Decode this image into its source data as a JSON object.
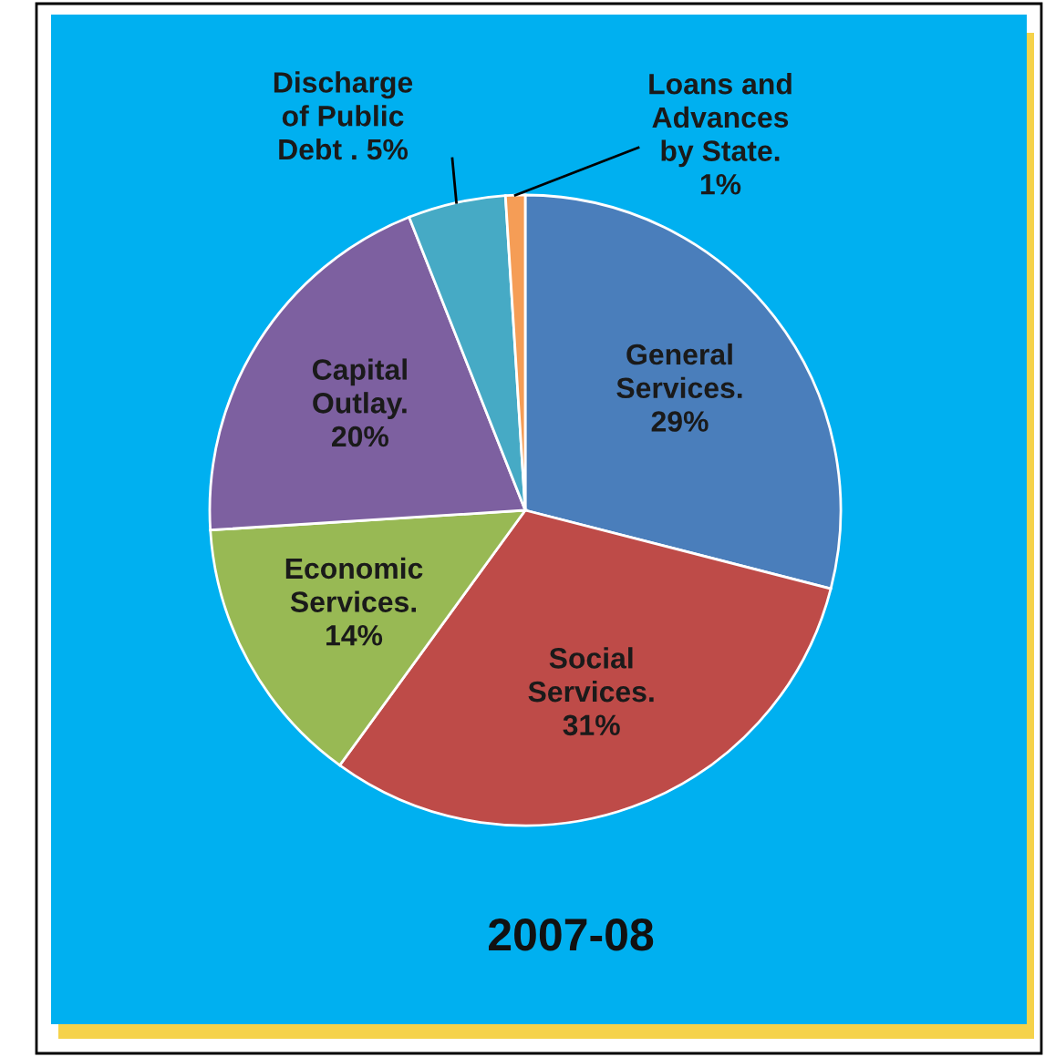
{
  "chart_data": {
    "type": "pie",
    "title": "2007-08",
    "categories": [
      "General\nServices.",
      "Social\nServices.",
      "Economic\nServices.",
      "Capital\nOutlay.",
      "Discharge\nof Public\nDebt .",
      "Loans and\nAdvances\nby State."
    ],
    "values": [
      29,
      31,
      14,
      20,
      5,
      1
    ],
    "value_labels": [
      "29%",
      "31%",
      "14%",
      "20%",
      "5%",
      "1%"
    ],
    "colors": [
      "#4a7ebb",
      "#be4b48",
      "#98b954",
      "#7d60a0",
      "#46aac5",
      "#f59d56"
    ]
  }
}
